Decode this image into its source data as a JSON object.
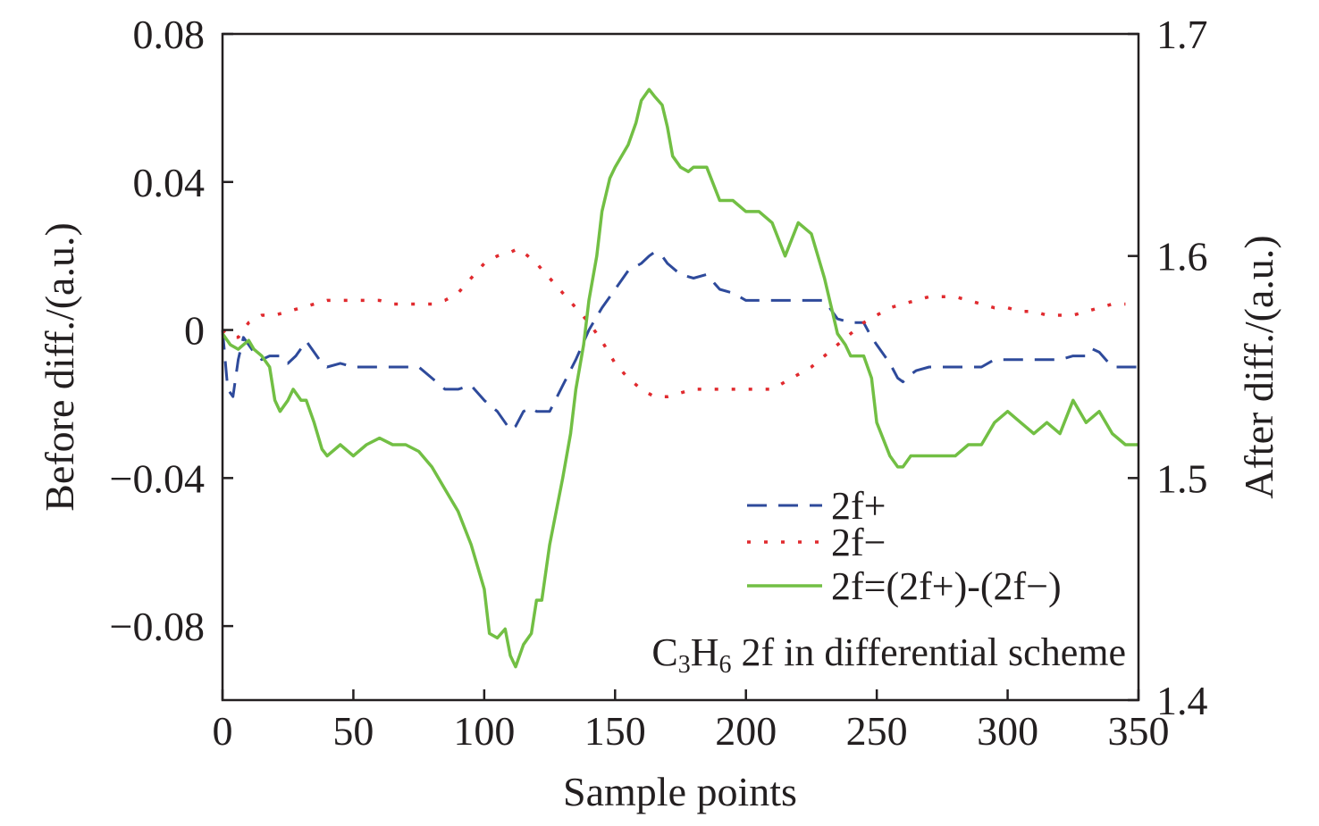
{
  "chart_data": {
    "type": "line",
    "title": "",
    "annotation": {
      "base": "C",
      "sub1": "3",
      "mid": "H",
      "sub2": "6",
      "rest": " 2f in differential scheme"
    },
    "xlabel": "Sample points",
    "ylabel_left": "Before diff./(a.u.)",
    "ylabel_right": "After diff./(a.u.)",
    "xlim": [
      0,
      350
    ],
    "ylim_left": [
      -0.1,
      0.08
    ],
    "ylim_right": [
      1.4,
      1.7
    ],
    "xticks": [
      0,
      50,
      100,
      150,
      200,
      250,
      300,
      350
    ],
    "xtick_labels": [
      "0",
      "50",
      "100",
      "150",
      "200",
      "250",
      "300",
      "350"
    ],
    "yticks_left": [
      0.08,
      0.04,
      0,
      -0.04,
      -0.08
    ],
    "ytick_labels_left": [
      "0.08",
      "0.04",
      "0",
      "−0.04",
      "−0.08"
    ],
    "yticks_right": [
      1.7,
      1.6,
      1.5,
      1.4
    ],
    "ytick_labels_right": [
      "1.7",
      "1.6",
      "1.5",
      "1.4"
    ],
    "legend_position": "bottom-right",
    "series": [
      {
        "name": "2f+",
        "axis": "left",
        "color": "#2e4a9b",
        "style": "dashed",
        "x": [
          0,
          2,
          4,
          6,
          8,
          10,
          12,
          15,
          18,
          22,
          25,
          28,
          30,
          32,
          35,
          38,
          40,
          45,
          50,
          55,
          60,
          65,
          70,
          75,
          80,
          85,
          90,
          95,
          100,
          105,
          110,
          112,
          115,
          118,
          120,
          125,
          130,
          135,
          140,
          145,
          150,
          155,
          160,
          163,
          165,
          168,
          170,
          175,
          180,
          185,
          190,
          195,
          200,
          205,
          210,
          220,
          230,
          235,
          240,
          245,
          248,
          250,
          255,
          258,
          260,
          263,
          265,
          270,
          280,
          290,
          295,
          300,
          305,
          310,
          315,
          320,
          325,
          330,
          332,
          335,
          340,
          345,
          350
        ],
        "values": [
          0,
          -0.016,
          -0.018,
          -0.008,
          -0.002,
          -0.004,
          -0.006,
          -0.008,
          -0.007,
          -0.007,
          -0.009,
          -0.007,
          -0.005,
          -0.003,
          -0.006,
          -0.009,
          -0.01,
          -0.009,
          -0.01,
          -0.01,
          -0.01,
          -0.01,
          -0.01,
          -0.01,
          -0.013,
          -0.016,
          -0.016,
          -0.015,
          -0.019,
          -0.022,
          -0.027,
          -0.026,
          -0.022,
          -0.021,
          -0.022,
          -0.022,
          -0.015,
          -0.008,
          0,
          0.006,
          0.011,
          0.016,
          0.018,
          0.02,
          0.021,
          0.02,
          0.018,
          0.015,
          0.014,
          0.015,
          0.011,
          0.01,
          0.008,
          0.008,
          0.008,
          0.008,
          0.008,
          0.003,
          0.002,
          0.002,
          -0.002,
          -0.004,
          -0.009,
          -0.013,
          -0.014,
          -0.012,
          -0.011,
          -0.01,
          -0.01,
          -0.01,
          -0.008,
          -0.008,
          -0.008,
          -0.008,
          -0.008,
          -0.008,
          -0.007,
          -0.007,
          -0.005,
          -0.006,
          -0.01,
          -0.01,
          -0.01
        ]
      },
      {
        "name": "2f−",
        "axis": "left",
        "color": "#e02a2e",
        "style": "dotted",
        "x": [
          0,
          3,
          6,
          10,
          15,
          20,
          25,
          30,
          35,
          40,
          45,
          50,
          55,
          60,
          65,
          70,
          75,
          80,
          85,
          90,
          95,
          100,
          105,
          110,
          113,
          115,
          120,
          125,
          130,
          135,
          140,
          145,
          150,
          155,
          160,
          165,
          170,
          180,
          190,
          200,
          210,
          220,
          225,
          230,
          235,
          240,
          245,
          250,
          255,
          260,
          265,
          270,
          275,
          280,
          285,
          290,
          295,
          300,
          305,
          310,
          315,
          320,
          325,
          330,
          335,
          340,
          345
        ],
        "values": [
          0,
          -0.002,
          -0.002,
          0.002,
          0.004,
          0.004,
          0.005,
          0.006,
          0.007,
          0.008,
          0.008,
          0.008,
          0.008,
          0.008,
          0.007,
          0.007,
          0.007,
          0.007,
          0.008,
          0.01,
          0.014,
          0.018,
          0.02,
          0.021,
          0.022,
          0.021,
          0.018,
          0.014,
          0.01,
          0.006,
          0.002,
          -0.003,
          -0.009,
          -0.013,
          -0.016,
          -0.018,
          -0.018,
          -0.016,
          -0.016,
          -0.016,
          -0.016,
          -0.012,
          -0.01,
          -0.007,
          -0.004,
          -0.001,
          0.002,
          0.004,
          0.006,
          0.007,
          0.008,
          0.009,
          0.009,
          0.009,
          0.008,
          0.007,
          0.006,
          0.006,
          0.005,
          0.005,
          0.004,
          0.004,
          0.004,
          0.005,
          0.006,
          0.007,
          0.007
        ]
      },
      {
        "name": "2f=(2f+)-(2f−)",
        "axis": "right",
        "color": "#72bf44",
        "style": "solid",
        "x": [
          0,
          3,
          6,
          8,
          10,
          12,
          15,
          18,
          20,
          22,
          25,
          27,
          30,
          32,
          35,
          38,
          40,
          45,
          50,
          55,
          60,
          65,
          70,
          75,
          80,
          85,
          90,
          95,
          100,
          102,
          105,
          108,
          110,
          112,
          115,
          118,
          120,
          122,
          125,
          130,
          133,
          135,
          138,
          140,
          143,
          145,
          148,
          150,
          155,
          158,
          160,
          163,
          165,
          168,
          170,
          172,
          175,
          178,
          180,
          185,
          190,
          195,
          200,
          205,
          210,
          215,
          220,
          225,
          230,
          233,
          235,
          238,
          240,
          243,
          245,
          248,
          250,
          255,
          258,
          260,
          263,
          265,
          270,
          275,
          280,
          285,
          290,
          295,
          300,
          305,
          310,
          315,
          320,
          325,
          330,
          335,
          340,
          345,
          350
        ],
        "values": [
          1.565,
          1.56,
          1.558,
          1.56,
          1.562,
          1.558,
          1.555,
          1.55,
          1.535,
          1.53,
          1.535,
          1.54,
          1.535,
          1.535,
          1.525,
          1.513,
          1.51,
          1.515,
          1.51,
          1.515,
          1.518,
          1.515,
          1.515,
          1.512,
          1.505,
          1.495,
          1.485,
          1.47,
          1.45,
          1.43,
          1.428,
          1.432,
          1.42,
          1.415,
          1.425,
          1.43,
          1.445,
          1.445,
          1.47,
          1.5,
          1.52,
          1.54,
          1.56,
          1.58,
          1.6,
          1.62,
          1.635,
          1.64,
          1.65,
          1.66,
          1.67,
          1.675,
          1.672,
          1.668,
          1.658,
          1.645,
          1.64,
          1.638,
          1.64,
          1.64,
          1.625,
          1.625,
          1.62,
          1.62,
          1.615,
          1.6,
          1.615,
          1.61,
          1.59,
          1.575,
          1.565,
          1.56,
          1.555,
          1.555,
          1.555,
          1.545,
          1.525,
          1.51,
          1.505,
          1.505,
          1.51,
          1.51,
          1.51,
          1.51,
          1.51,
          1.515,
          1.515,
          1.525,
          1.53,
          1.525,
          1.52,
          1.525,
          1.52,
          1.535,
          1.525,
          1.53,
          1.52,
          1.515,
          1.515
        ]
      }
    ]
  }
}
